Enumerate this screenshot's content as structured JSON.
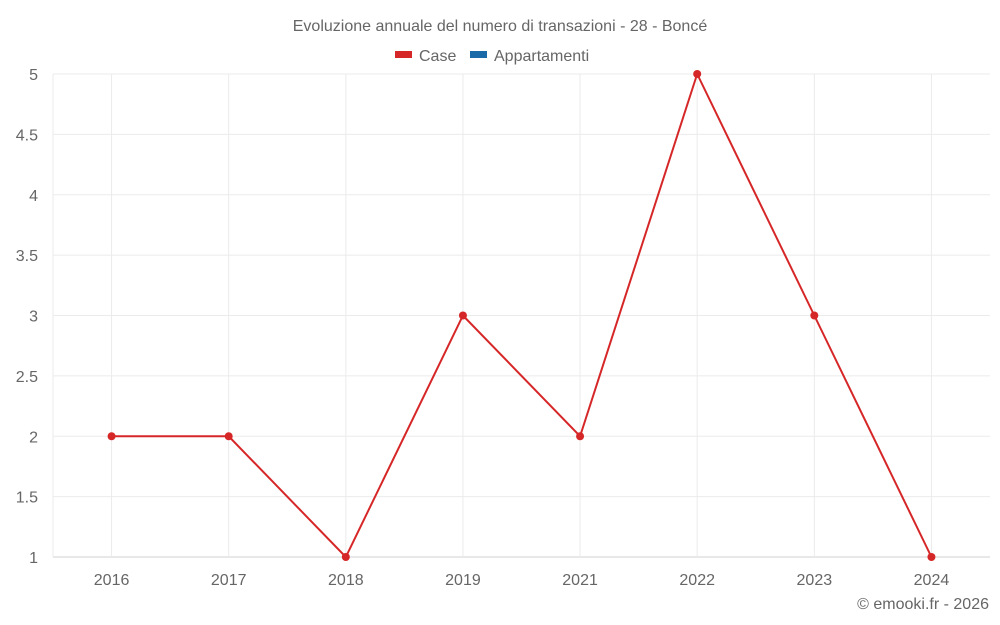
{
  "chart_data": {
    "type": "line",
    "title": "Evoluzione annuale del numero di transazioni - 28 - Boncé",
    "categories": [
      "2016",
      "2017",
      "2018",
      "2019",
      "2021",
      "2022",
      "2023",
      "2024"
    ],
    "series": [
      {
        "name": "Case",
        "color": "#d62728",
        "values": [
          2,
          2,
          1,
          3,
          2,
          5,
          3,
          1
        ]
      },
      {
        "name": "Appartamenti",
        "color": "#1f77b4",
        "values": []
      }
    ],
    "xlabel": "",
    "ylabel": "",
    "ylim": [
      1,
      5
    ],
    "yticks": [
      "1",
      "1.5",
      "2",
      "2.5",
      "3",
      "3.5",
      "4",
      "4.5",
      "5"
    ],
    "grid": true,
    "legend_position": "top-center"
  },
  "legend": {
    "items": [
      {
        "label": "Case",
        "color": "#d62728"
      },
      {
        "label": "Appartamenti",
        "color": "#1a6aa8"
      }
    ]
  },
  "credit": "© emooki.fr - 2026"
}
